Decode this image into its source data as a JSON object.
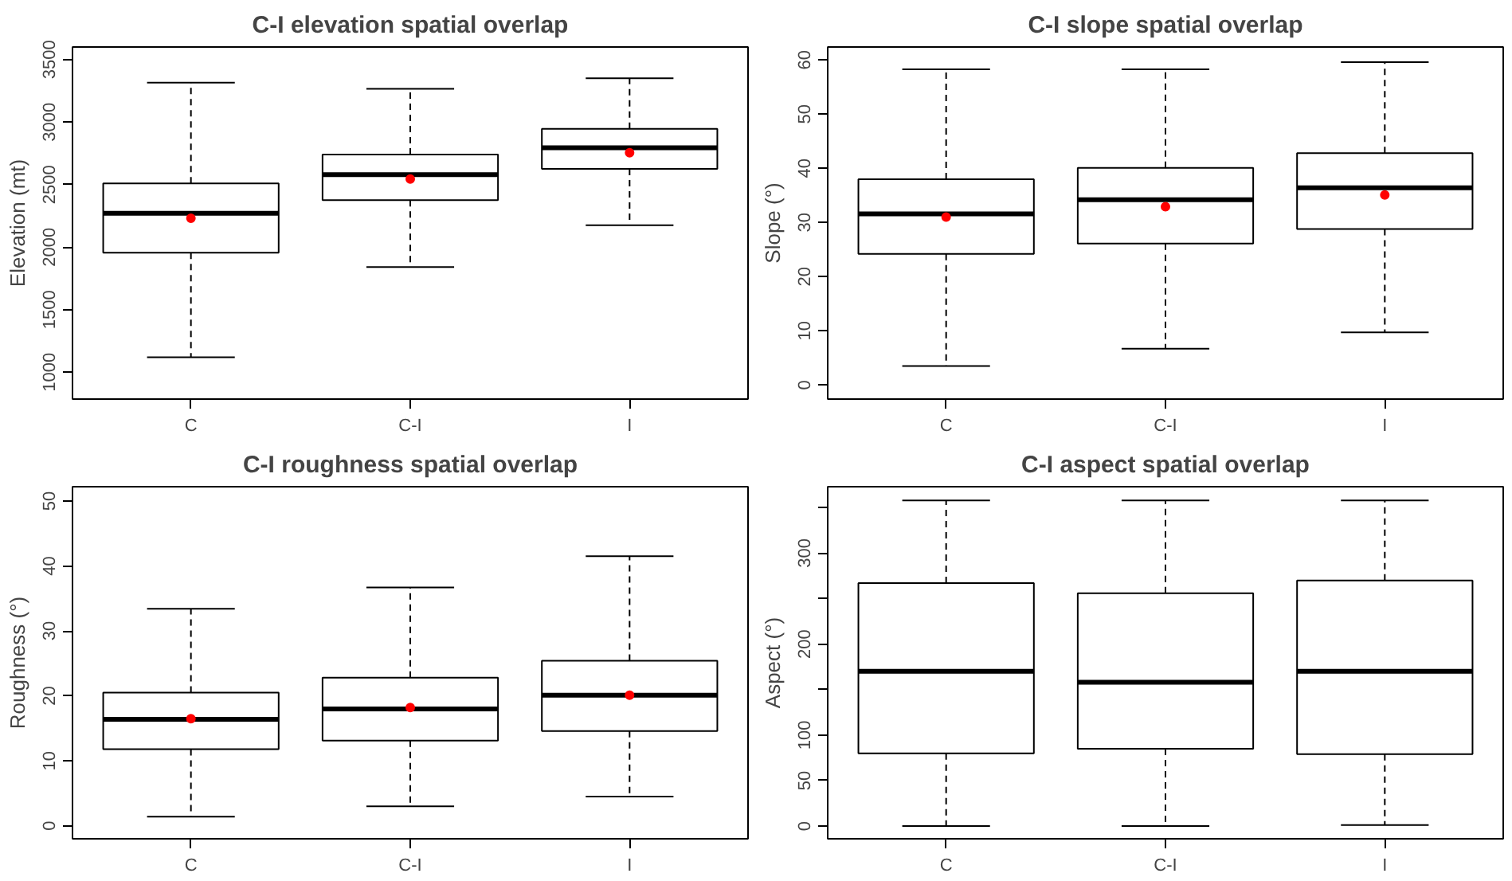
{
  "chart_data": [
    {
      "type": "box",
      "title": "C-I elevation spatial overlap",
      "ylabel": "Elevation (mt)",
      "categories": [
        "C",
        "C-I",
        "I"
      ],
      "ylim": [
        785,
        3600
      ],
      "yticks": [
        1000,
        1500,
        2000,
        2500,
        3000,
        3500
      ],
      "boxes": [
        {
          "low": 1120,
          "q1": 1955,
          "median": 2270,
          "q3": 2510,
          "high": 3315,
          "mean": 2230
        },
        {
          "low": 1840,
          "q1": 2375,
          "median": 2580,
          "q3": 2740,
          "high": 3265,
          "mean": 2545
        },
        {
          "low": 2175,
          "q1": 2625,
          "median": 2795,
          "q3": 2945,
          "high": 3350,
          "mean": 2755
        }
      ]
    },
    {
      "type": "box",
      "title": "C-I slope spatial overlap",
      "ylabel": "Slope (°)",
      "categories": [
        "C",
        "C-I",
        "I"
      ],
      "ylim": [
        -2.6,
        62.4
      ],
      "yticks": [
        0,
        10,
        20,
        30,
        40,
        50,
        60
      ],
      "boxes": [
        {
          "low": 3.5,
          "q1": 24.2,
          "median": 31.6,
          "q3": 38.0,
          "high": 58.3,
          "mean": 31.0
        },
        {
          "low": 6.7,
          "q1": 26.1,
          "median": 34.2,
          "q3": 40.1,
          "high": 58.3,
          "mean": 32.9
        },
        {
          "low": 9.7,
          "q1": 28.8,
          "median": 36.4,
          "q3": 42.8,
          "high": 59.6,
          "mean": 35.1
        }
      ]
    },
    {
      "type": "box",
      "title": "C-I roughness spatial overlap",
      "ylabel": "Roughness (°)",
      "categories": [
        "C",
        "C-I",
        "I"
      ],
      "ylim": [
        -2.0,
        52.2
      ],
      "yticks": [
        0,
        10,
        20,
        30,
        40,
        50
      ],
      "boxes": [
        {
          "low": 1.4,
          "q1": 11.8,
          "median": 16.4,
          "q3": 20.5,
          "high": 33.4,
          "mean": 16.5
        },
        {
          "low": 3.0,
          "q1": 13.1,
          "median": 18.0,
          "q3": 22.8,
          "high": 36.7,
          "mean": 18.2
        },
        {
          "low": 4.5,
          "q1": 14.6,
          "median": 20.1,
          "q3": 25.4,
          "high": 41.5,
          "mean": 20.1
        }
      ]
    },
    {
      "type": "box",
      "title": "C-I aspect spatial overlap",
      "ylabel": "Aspect (°)",
      "categories": [
        "C",
        "C-I",
        "I"
      ],
      "ylim": [
        -14,
        373
      ],
      "yticks": [
        0,
        50,
        100,
        {
          "value": 150,
          "label": null
        },
        200,
        {
          "value": 250,
          "label": null
        },
        300,
        {
          "value": 350,
          "label": null
        }
      ],
      "boxes": [
        {
          "low": 0,
          "q1": 80,
          "median": 170,
          "q3": 267,
          "high": 358
        },
        {
          "low": 0,
          "q1": 85,
          "median": 158,
          "q3": 256,
          "high": 358
        },
        {
          "low": 1,
          "q1": 79,
          "median": 170,
          "q3": 270,
          "high": 358
        }
      ]
    }
  ]
}
